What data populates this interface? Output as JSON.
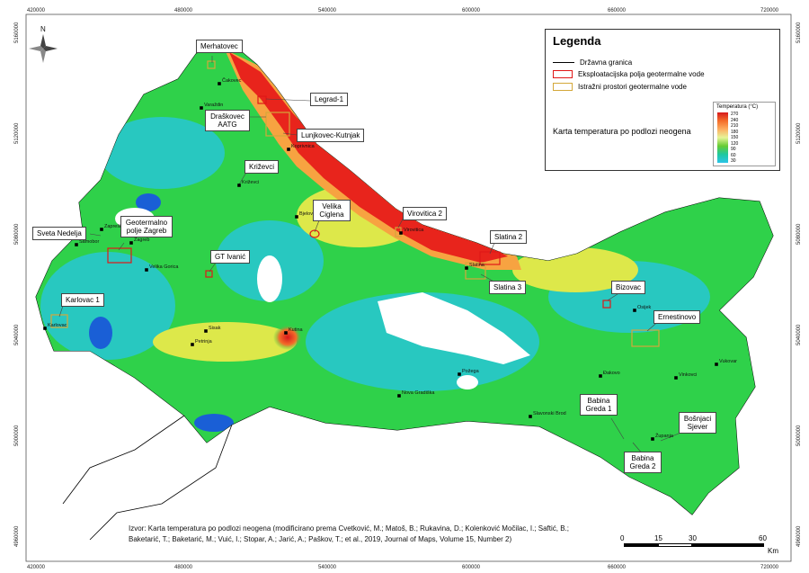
{
  "colors": {
    "hot": "#e8241c",
    "warm": "#f7a341",
    "mild": "#dde84a",
    "green": "#2fd14a",
    "cyan": "#28c8c0",
    "blue": "#1a5fd6",
    "exploit_outline": "#e01818",
    "explore_outline": "#d4a83a"
  },
  "axes": {
    "x_ticks": [
      "420000",
      "480000",
      "540000",
      "600000",
      "660000",
      "720000"
    ],
    "y_ticks": [
      "5160000",
      "5120000",
      "5080000",
      "5040000",
      "5000000",
      "4960000"
    ]
  },
  "north_arrow": {
    "label": "N",
    "icon": "compass-rose-icon"
  },
  "legend": {
    "title": "Legenda",
    "items": [
      {
        "label": "Državna granica",
        "symbol": "line"
      },
      {
        "label": "Eksploatacijska polja geotermalne vode",
        "symbol": "red-box"
      },
      {
        "label": "Istražni prostori geotermalne vode",
        "symbol": "orange-box"
      }
    ],
    "map_title": "Karta temperatura po podlozi neogena",
    "colorbar": {
      "title": "Temperatura (°C)",
      "ticks": [
        "270",
        "240",
        "210",
        "180",
        "150",
        "120",
        "90",
        "60",
        "30"
      ]
    }
  },
  "callouts": [
    {
      "label": "Merhatovec"
    },
    {
      "label": "Legrad-1"
    },
    {
      "label": "Draškovec AATG"
    },
    {
      "label": "Lunjkovec-Kutnjak"
    },
    {
      "label": "Križevci"
    },
    {
      "label": "Velika Ciglena"
    },
    {
      "label": "Virovitica 2"
    },
    {
      "label": "Sveta Nedelja"
    },
    {
      "label": "Geotermalno polje Zagreb"
    },
    {
      "label": "GT Ivanić"
    },
    {
      "label": "Slatina 2"
    },
    {
      "label": "Slatina 3"
    },
    {
      "label": "Bizovac"
    },
    {
      "label": "Ernestinovo"
    },
    {
      "label": "Karlovac 1"
    },
    {
      "label": "Babina Greda 1"
    },
    {
      "label": "Bošnjaci Sjever"
    },
    {
      "label": "Babina Greda 2"
    }
  ],
  "places": [
    "Čakovec",
    "Varaždin",
    "Koprivnica",
    "Križevci",
    "Bjelovar",
    "Virovitica",
    "Zaprešić",
    "Zagreb",
    "Samobor",
    "Velika Gorica",
    "Karlovac",
    "Sisak",
    "Petrinja",
    "Kutina",
    "Slatina",
    "Osijek",
    "Požega",
    "Nova Gradiška",
    "Slavonski Brod",
    "Đakovo",
    "Vinkovci",
    "Vukovar",
    "Županja"
  ],
  "source": {
    "line1": "Izvor: Karta temperatura po podlozi neogena (modificirano prema Cvetković, M.; Matoš, B.; Rukavina, D.; Kolenković Močilac, I.; Saftić, B.;",
    "line2": "Baketarić, T.; Baketarić, M.; Vuić, I.; Stopar, A.; Jarić, A.; Paškov, T.; et al., 2019, Journal of Maps, Volume 15, Number 2)"
  },
  "scale": {
    "ticks": [
      "0",
      "15",
      "30",
      "60"
    ],
    "unit": "Km"
  }
}
